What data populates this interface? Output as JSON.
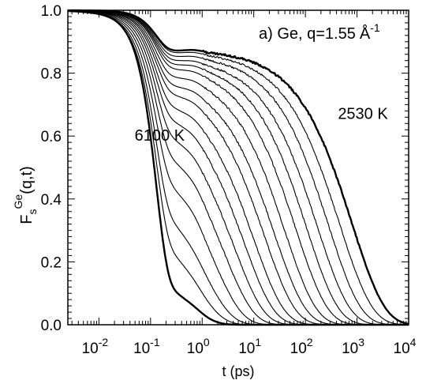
{
  "chart_data": {
    "type": "line",
    "panel_label": "a) Ge, q=1.55",
    "panel_label_unit": "Å",
    "panel_label_unit_exp": "-1",
    "xlabel": "t (ps)",
    "ylabel": {
      "main": "F",
      "sub": "s",
      "sup": "Ge",
      "args": "(q,t)"
    },
    "x_scale": "log",
    "xlim": [
      0.0025,
      10000
    ],
    "ylim": [
      0.0,
      1.0
    ],
    "x_ticks": [
      {
        "base": "10",
        "exp": "-2",
        "value": 0.01
      },
      {
        "base": "10",
        "exp": "-1",
        "value": 0.1
      },
      {
        "base": "10",
        "exp": "0",
        "value": 1
      },
      {
        "base": "10",
        "exp": "1",
        "value": 10
      },
      {
        "base": "10",
        "exp": "2",
        "value": 100
      },
      {
        "base": "10",
        "exp": "3",
        "value": 1000
      },
      {
        "base": "10",
        "exp": "4",
        "value": 10000
      }
    ],
    "y_ticks": [
      {
        "label": "0.0",
        "value": 0.0
      },
      {
        "label": "0.2",
        "value": 0.2
      },
      {
        "label": "0.4",
        "value": 0.4
      },
      {
        "label": "0.6",
        "value": 0.6
      },
      {
        "label": "0.8",
        "value": 0.8
      },
      {
        "label": "1.0",
        "value": 1.0
      }
    ],
    "annotations": [
      {
        "text": "6100 K",
        "x": 0.15,
        "y": 0.585
      },
      {
        "text": "2530 K",
        "x": 1300,
        "y": 0.655
      }
    ],
    "grid": false,
    "series_params": [
      {
        "tau": 0.5,
        "beta": 0.85,
        "A": 0.2,
        "a": 0.08,
        "bold": true
      },
      {
        "tau": 0.75,
        "beta": 0.83,
        "A": 0.35,
        "a": 0.1,
        "bold": false
      },
      {
        "tau": 1.1,
        "beta": 0.81,
        "A": 0.45,
        "a": 0.12,
        "bold": false
      },
      {
        "tau": 1.7,
        "beta": 0.79,
        "A": 0.55,
        "a": 0.13,
        "bold": false
      },
      {
        "tau": 2.7,
        "beta": 0.77,
        "A": 0.62,
        "a": 0.14,
        "bold": false
      },
      {
        "tau": 4.2,
        "beta": 0.76,
        "A": 0.67,
        "a": 0.145,
        "bold": false
      },
      {
        "tau": 6.5,
        "beta": 0.75,
        "A": 0.71,
        "a": 0.15,
        "bold": false
      },
      {
        "tau": 10,
        "beta": 0.74,
        "A": 0.74,
        "a": 0.155,
        "bold": false
      },
      {
        "tau": 16,
        "beta": 0.73,
        "A": 0.77,
        "a": 0.16,
        "bold": false
      },
      {
        "tau": 25,
        "beta": 0.72,
        "A": 0.79,
        "a": 0.165,
        "bold": false
      },
      {
        "tau": 40,
        "beta": 0.72,
        "A": 0.81,
        "a": 0.17,
        "bold": false
      },
      {
        "tau": 65,
        "beta": 0.71,
        "A": 0.83,
        "a": 0.175,
        "bold": false
      },
      {
        "tau": 105,
        "beta": 0.71,
        "A": 0.84,
        "a": 0.18,
        "bold": false
      },
      {
        "tau": 170,
        "beta": 0.7,
        "A": 0.85,
        "a": 0.185,
        "bold": false
      },
      {
        "tau": 280,
        "beta": 0.7,
        "A": 0.86,
        "a": 0.19,
        "bold": false
      },
      {
        "tau": 460,
        "beta": 0.69,
        "A": 0.87,
        "a": 0.195,
        "bold": false
      },
      {
        "tau": 800,
        "beta": 0.69,
        "A": 0.875,
        "a": 0.2,
        "bold": true
      }
    ]
  }
}
